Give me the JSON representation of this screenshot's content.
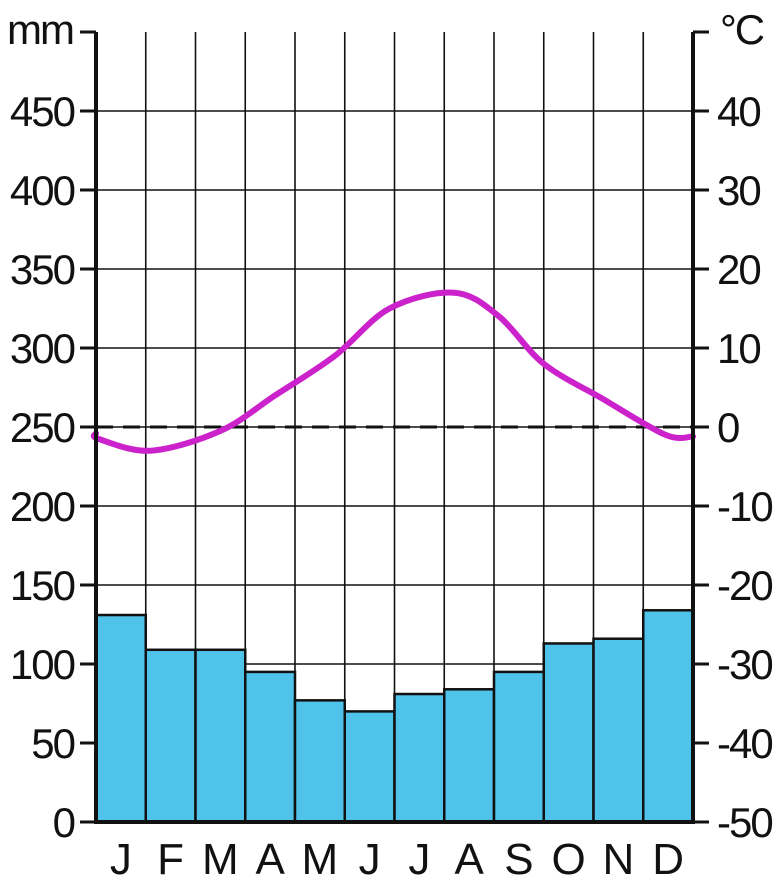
{
  "chart_data": {
    "type": "bar",
    "categories": [
      "J",
      "F",
      "M",
      "A",
      "M",
      "J",
      "J",
      "A",
      "S",
      "O",
      "N",
      "D"
    ],
    "precipitation": {
      "unit": "mm",
      "values": [
        131,
        109,
        109,
        95,
        77,
        70,
        81,
        84,
        95,
        113,
        116,
        134
      ],
      "ylim": [
        0,
        500
      ],
      "ticks": [
        "0",
        "50",
        "100",
        "150",
        "200",
        "250",
        "300",
        "350",
        "400",
        "450"
      ],
      "color": "#4fc3ea"
    },
    "temperature": {
      "unit": "°C",
      "values": [
        -1.5,
        -3.0,
        -0.5,
        4.0,
        9.0,
        15.0,
        17.0,
        14.0,
        8.0,
        3.5,
        -1.0
      ],
      "values_x": [
        0.05,
        1.1,
        2.5,
        3.6,
        4.8,
        5.9,
        7.2,
        8.1,
        9.0,
        10.2,
        11.45
      ],
      "endpoints": {
        "start": -0.8,
        "end": -1.2
      },
      "ylim": [
        -50,
        50
      ],
      "ticks": [
        "-50",
        "-40",
        "-30",
        "-20",
        "-10",
        "0",
        "10",
        "20",
        "30",
        "40"
      ],
      "color": "#cc22cc"
    },
    "zero_line": "dashed",
    "grid": true
  }
}
